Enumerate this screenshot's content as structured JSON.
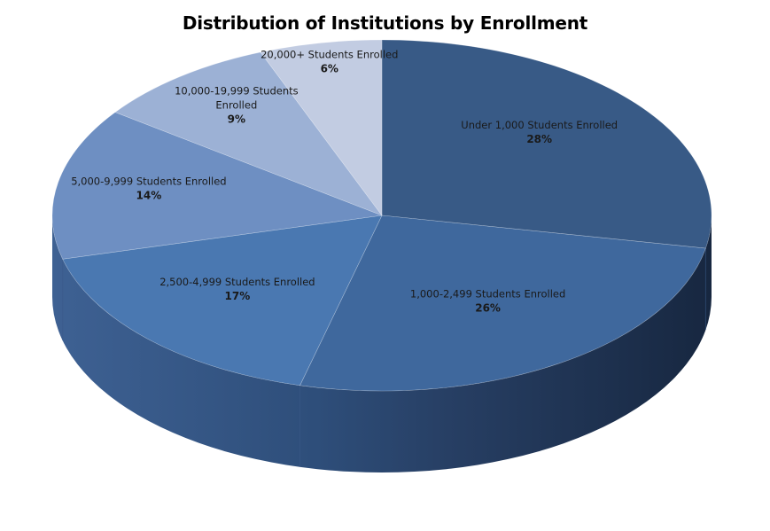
{
  "chart_data": {
    "type": "pie",
    "title": "Distribution of Institutions by Enrollment",
    "style": "3d-pie",
    "slices": [
      {
        "label": "Under 1,000 Students Enrolled",
        "value": 28,
        "pct_label": "28%",
        "color": "#385A86"
      },
      {
        "label": "1,000-2,499 Students Enrolled",
        "value": 26,
        "pct_label": "26%",
        "color": "#3F689D"
      },
      {
        "label": "2,500-4,999 Students Enrolled",
        "value": 17,
        "pct_label": "17%",
        "color": "#4A78B1"
      },
      {
        "label": "5,000-9,999 Students Enrolled",
        "value": 14,
        "pct_label": "14%",
        "color": "#6E8FC2"
      },
      {
        "label": "10,000-19,999 Students Enrolled",
        "value": 9,
        "pct_label": "9%",
        "color": "#9CB1D5"
      },
      {
        "label": "20,000+ Students Enrolled",
        "value": 6,
        "pct_label": "6%",
        "color": "#C2CCE2"
      }
    ]
  }
}
